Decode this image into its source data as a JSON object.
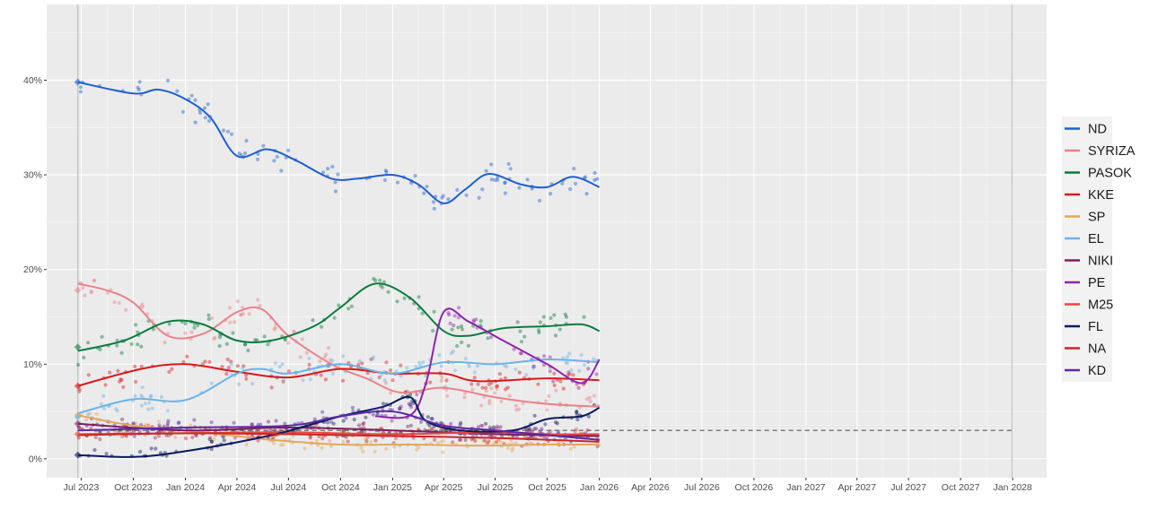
{
  "chart_data": {
    "type": "line",
    "title": "",
    "xlabel": "",
    "ylabel": "",
    "x_ticks": [
      "Jul 2023",
      "Oct 2023",
      "Jan 2024",
      "Apr 2024",
      "Jul 2024",
      "Oct 2024",
      "Jan 2025",
      "Apr 2025",
      "Jul 2025",
      "Oct 2025",
      "Jan 2026",
      "Apr 2026",
      "Jul 2026",
      "Oct 2026",
      "Jan 2027",
      "Apr 2027",
      "Jul 2027",
      "Oct 2027",
      "Jan 2028"
    ],
    "y_ticks": [
      "0%",
      "10%",
      "20%",
      "30%",
      "40%"
    ],
    "xlim": [
      "2023-05-01",
      "2028-03-01"
    ],
    "ylim": [
      -2,
      48
    ],
    "grid": true,
    "legend_position": "right",
    "election_lines": [
      "2023-06-25",
      "2027-12-31"
    ],
    "threshold": {
      "value": 3,
      "from": "2023-06-25",
      "to": "2027-12-31",
      "style": "dashed"
    },
    "series": [
      {
        "name": "ND",
        "color": "#1f5fcf",
        "election": 39.8,
        "trend": [
          [
            "2023-06-25",
            39.8
          ],
          [
            "2023-10-01",
            38.6
          ],
          [
            "2023-11-15",
            39.0
          ],
          [
            "2024-01-01",
            38.0
          ],
          [
            "2024-02-15",
            36.0
          ],
          [
            "2024-04-01",
            32.0
          ],
          [
            "2024-05-25",
            32.7
          ],
          [
            "2024-07-15",
            31.5
          ],
          [
            "2024-09-15",
            29.6
          ],
          [
            "2024-11-01",
            29.6
          ],
          [
            "2025-01-01",
            30.0
          ],
          [
            "2025-02-15",
            29.0
          ],
          [
            "2025-04-01",
            27.0
          ],
          [
            "2025-05-10",
            28.5
          ],
          [
            "2025-06-20",
            30.1
          ],
          [
            "2025-08-15",
            29.0
          ],
          [
            "2025-10-01",
            28.7
          ],
          [
            "2025-11-15",
            29.8
          ],
          [
            "2026-01-01",
            28.7
          ]
        ]
      },
      {
        "name": "SYRIZA",
        "color": "#e8838a",
        "election": 17.8,
        "trend": [
          [
            "2023-06-25",
            18.5
          ],
          [
            "2023-08-15",
            17.8
          ],
          [
            "2023-10-01",
            16.5
          ],
          [
            "2023-12-01",
            13.0
          ],
          [
            "2024-02-01",
            13.2
          ],
          [
            "2024-04-01",
            15.5
          ],
          [
            "2024-05-15",
            15.8
          ],
          [
            "2024-07-01",
            13.0
          ],
          [
            "2024-09-15",
            10.0
          ],
          [
            "2024-11-15",
            8.5
          ],
          [
            "2025-01-15",
            7.0
          ],
          [
            "2025-04-01",
            7.5
          ],
          [
            "2025-07-01",
            6.5
          ],
          [
            "2025-10-01",
            5.8
          ],
          [
            "2026-01-01",
            5.5
          ]
        ]
      },
      {
        "name": "PASOK",
        "color": "#0b7a3e",
        "election": 11.8,
        "trend": [
          [
            "2023-06-25",
            11.4
          ],
          [
            "2023-09-15",
            12.5
          ],
          [
            "2023-12-01",
            14.5
          ],
          [
            "2024-02-01",
            14.2
          ],
          [
            "2024-04-01",
            12.5
          ],
          [
            "2024-06-01",
            12.5
          ],
          [
            "2024-08-15",
            14.0
          ],
          [
            "2024-10-01",
            16.0
          ],
          [
            "2024-12-01",
            18.5
          ],
          [
            "2025-02-01",
            17.0
          ],
          [
            "2025-04-01",
            13.5
          ],
          [
            "2025-05-15",
            13.0
          ],
          [
            "2025-07-15",
            13.8
          ],
          [
            "2025-10-01",
            14.0
          ],
          [
            "2025-12-01",
            14.2
          ],
          [
            "2026-01-01",
            13.5
          ]
        ]
      },
      {
        "name": "KKE",
        "color": "#d7191c",
        "election": 7.7,
        "trend": [
          [
            "2023-06-25",
            7.7
          ],
          [
            "2023-10-15",
            9.5
          ],
          [
            "2024-01-01",
            10.0
          ],
          [
            "2024-04-01",
            9.2
          ],
          [
            "2024-07-01",
            8.6
          ],
          [
            "2024-10-01",
            9.5
          ],
          [
            "2025-01-01",
            9.0
          ],
          [
            "2025-04-01",
            9.0
          ],
          [
            "2025-06-01",
            8.2
          ],
          [
            "2025-10-01",
            8.5
          ],
          [
            "2026-01-01",
            8.3
          ]
        ]
      },
      {
        "name": "SP",
        "color": "#e2a85c",
        "election": 4.6,
        "trend": [
          [
            "2023-06-25",
            4.6
          ],
          [
            "2023-10-01",
            3.5
          ],
          [
            "2024-02-01",
            2.8
          ],
          [
            "2024-06-01",
            2.0
          ],
          [
            "2024-10-01",
            1.5
          ],
          [
            "2025-02-01",
            1.5
          ],
          [
            "2025-06-01",
            1.4
          ],
          [
            "2025-10-01",
            1.5
          ],
          [
            "2026-01-01",
            1.5
          ]
        ]
      },
      {
        "name": "EL",
        "color": "#6db3e8",
        "election": 4.4,
        "trend": [
          [
            "2023-06-25",
            4.8
          ],
          [
            "2023-10-01",
            6.3
          ],
          [
            "2024-01-01",
            6.2
          ],
          [
            "2024-04-01",
            9.0
          ],
          [
            "2024-05-15",
            9.5
          ],
          [
            "2024-07-01",
            9.0
          ],
          [
            "2024-10-01",
            10.0
          ],
          [
            "2025-01-01",
            9.0
          ],
          [
            "2025-04-01",
            10.2
          ],
          [
            "2025-07-01",
            10.0
          ],
          [
            "2025-10-01",
            10.5
          ],
          [
            "2026-01-01",
            10.2
          ]
        ]
      },
      {
        "name": "NIKI",
        "color": "#7a1f5c",
        "election": 3.7,
        "trend": [
          [
            "2023-06-25",
            3.7
          ],
          [
            "2024-01-01",
            3.0
          ],
          [
            "2024-07-01",
            3.3
          ],
          [
            "2025-01-01",
            3.0
          ],
          [
            "2025-07-01",
            2.6
          ],
          [
            "2026-01-01",
            2.4
          ]
        ]
      },
      {
        "name": "PE",
        "color": "#8e24aa",
        "election": null,
        "trend": [
          [
            "2024-12-01",
            4.5
          ],
          [
            "2025-02-01",
            4.6
          ],
          [
            "2025-03-01",
            8.0
          ],
          [
            "2025-04-01",
            15.5
          ],
          [
            "2025-05-15",
            14.5
          ],
          [
            "2025-07-15",
            12.5
          ],
          [
            "2025-10-01",
            10.0
          ],
          [
            "2025-12-01",
            8.0
          ],
          [
            "2026-01-01",
            10.5
          ]
        ]
      },
      {
        "name": "M25",
        "color": "#e8473d",
        "election": 2.6,
        "trend": [
          [
            "2023-06-25",
            2.6
          ],
          [
            "2024-01-01",
            2.7
          ],
          [
            "2024-07-01",
            2.8
          ],
          [
            "2025-01-01",
            2.6
          ],
          [
            "2025-07-01",
            2.8
          ],
          [
            "2025-10-01",
            2.6
          ],
          [
            "2026-01-01",
            2.6
          ]
        ]
      },
      {
        "name": "FL",
        "color": "#0a1a5c",
        "election": 0.4,
        "trend": [
          [
            "2023-06-25",
            0.4
          ],
          [
            "2023-10-01",
            0.2
          ],
          [
            "2024-01-01",
            0.8
          ],
          [
            "2024-06-01",
            2.5
          ],
          [
            "2024-10-01",
            4.5
          ],
          [
            "2024-12-15",
            5.5
          ],
          [
            "2025-02-01",
            6.5
          ],
          [
            "2025-03-01",
            4.0
          ],
          [
            "2025-05-01",
            3.0
          ],
          [
            "2025-08-01",
            3.0
          ],
          [
            "2025-10-01",
            4.2
          ],
          [
            "2025-12-01",
            4.5
          ],
          [
            "2026-01-01",
            5.4
          ]
        ]
      },
      {
        "name": "NA",
        "color": "#c62828",
        "election": null,
        "trend": [
          [
            "2023-06-25",
            2.5
          ],
          [
            "2024-01-01",
            2.7
          ],
          [
            "2024-07-01",
            2.6
          ],
          [
            "2025-01-01",
            2.4
          ],
          [
            "2025-07-01",
            2.2
          ],
          [
            "2026-01-01",
            1.8
          ]
        ]
      },
      {
        "name": "KD",
        "color": "#5b2aa3",
        "election": null,
        "trend": [
          [
            "2023-06-25",
            3.0
          ],
          [
            "2024-01-01",
            3.3
          ],
          [
            "2024-07-01",
            3.5
          ],
          [
            "2024-10-01",
            4.5
          ],
          [
            "2025-01-01",
            5.0
          ],
          [
            "2025-04-01",
            3.5
          ],
          [
            "2025-07-01",
            3.0
          ],
          [
            "2025-10-01",
            2.5
          ],
          [
            "2026-01-01",
            2.0
          ]
        ]
      }
    ]
  }
}
